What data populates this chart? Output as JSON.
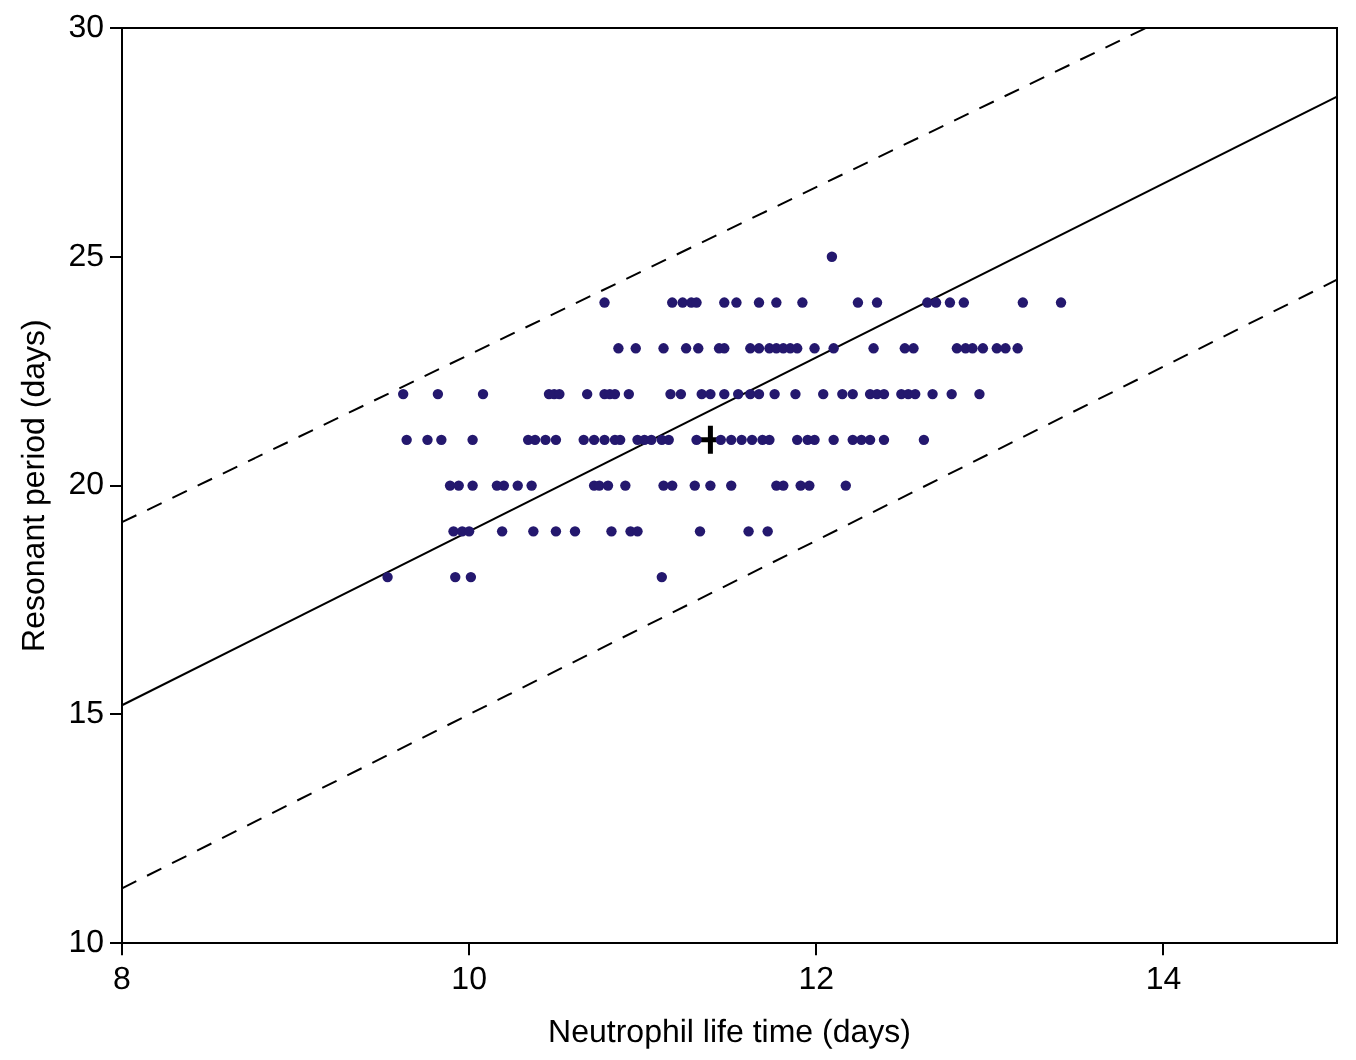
{
  "chart_data": {
    "type": "scatter",
    "xlabel": "Neutrophil life time (days)",
    "ylabel": "Resonant period (days)",
    "xlim": [
      8,
      15
    ],
    "ylim": [
      10,
      30
    ],
    "xticks": [
      8,
      10,
      12,
      14
    ],
    "yticks": [
      10,
      15,
      20,
      25,
      30
    ],
    "grid": false,
    "legend": false,
    "marker": "circle",
    "series": [
      {
        "color": "#24186e",
        "x": [
          12.09,
          10.78,
          11.17,
          11.23,
          11.28,
          11.31,
          11.47,
          11.54,
          11.67,
          11.77,
          11.92,
          12.24,
          12.35,
          12.64,
          12.69,
          12.77,
          12.85,
          13.19,
          13.41,
          10.86,
          10.96,
          11.12,
          11.25,
          11.32,
          11.44,
          11.47,
          11.62,
          11.67,
          11.73,
          11.77,
          11.81,
          11.85,
          11.89,
          11.99,
          12.1,
          12.33,
          12.51,
          12.56,
          12.81,
          12.86,
          12.9,
          12.96,
          13.04,
          13.09,
          13.16,
          9.62,
          9.82,
          10.08,
          10.46,
          10.49,
          10.52,
          10.68,
          10.78,
          10.81,
          10.84,
          10.92,
          11.16,
          11.22,
          11.34,
          11.39,
          11.47,
          11.55,
          11.62,
          11.67,
          11.76,
          11.88,
          12.04,
          12.15,
          12.21,
          12.31,
          12.35,
          12.39,
          12.49,
          12.53,
          12.57,
          12.67,
          12.78,
          12.94,
          9.64,
          9.76,
          9.84,
          10.02,
          10.34,
          10.38,
          10.44,
          10.5,
          10.66,
          10.72,
          10.78,
          10.84,
          10.87,
          10.97,
          11.01,
          11.05,
          11.11,
          11.15,
          11.31,
          11.45,
          11.51,
          11.57,
          11.63,
          11.69,
          11.73,
          11.89,
          11.95,
          11.99,
          12.1,
          12.21,
          12.26,
          12.31,
          12.39,
          12.62,
          9.89,
          9.94,
          10.02,
          10.16,
          10.2,
          10.28,
          10.36,
          10.72,
          10.75,
          10.8,
          10.9,
          11.12,
          11.17,
          11.3,
          11.39,
          11.51,
          11.77,
          11.81,
          11.91,
          11.96,
          12.17,
          9.91,
          9.96,
          10,
          10.19,
          10.37,
          10.5,
          10.61,
          10.82,
          10.93,
          10.97,
          11.33,
          11.61,
          11.72,
          9.53,
          9.92,
          10.01,
          11.11
        ],
        "values": [
          25,
          24,
          24,
          24,
          24,
          24,
          24,
          24,
          24,
          24,
          24,
          24,
          24,
          24,
          24,
          24,
          24,
          24,
          24,
          23,
          23,
          23,
          23,
          23,
          23,
          23,
          23,
          23,
          23,
          23,
          23,
          23,
          23,
          23,
          23,
          23,
          23,
          23,
          23,
          23,
          23,
          23,
          23,
          23,
          23,
          22,
          22,
          22,
          22,
          22,
          22,
          22,
          22,
          22,
          22,
          22,
          22,
          22,
          22,
          22,
          22,
          22,
          22,
          22,
          22,
          22,
          22,
          22,
          22,
          22,
          22,
          22,
          22,
          22,
          22,
          22,
          22,
          22,
          21,
          21,
          21,
          21,
          21,
          21,
          21,
          21,
          21,
          21,
          21,
          21,
          21,
          21,
          21,
          21,
          21,
          21,
          21,
          21,
          21,
          21,
          21,
          21,
          21,
          21,
          21,
          21,
          21,
          21,
          21,
          21,
          21,
          21,
          20,
          20,
          20,
          20,
          20,
          20,
          20,
          20,
          20,
          20,
          20,
          20,
          20,
          20,
          20,
          20,
          20,
          20,
          20,
          20,
          20,
          19,
          19,
          19,
          19,
          19,
          19,
          19,
          19,
          19,
          19,
          19,
          19,
          19,
          18,
          18,
          18,
          18
        ]
      },
      {
        "color": "#000000",
        "marker": "cross",
        "x": [
          11.39
        ],
        "values": [
          21
        ]
      },
      {
        "type": "line",
        "color": "#000000",
        "marker": "none",
        "line_style": "solid",
        "x": [
          8,
          15
        ],
        "values": [
          15.2,
          28.5
        ]
      },
      {
        "type": "line",
        "color": "#000000",
        "marker": "none",
        "line_style": "dashed",
        "x": [
          8,
          13.9
        ],
        "values": [
          19.2,
          30
        ]
      },
      {
        "type": "line",
        "color": "#000000",
        "marker": "none",
        "line_style": "dashed",
        "x": [
          8,
          15
        ],
        "values": [
          11.2,
          24.5
        ]
      }
    ]
  }
}
